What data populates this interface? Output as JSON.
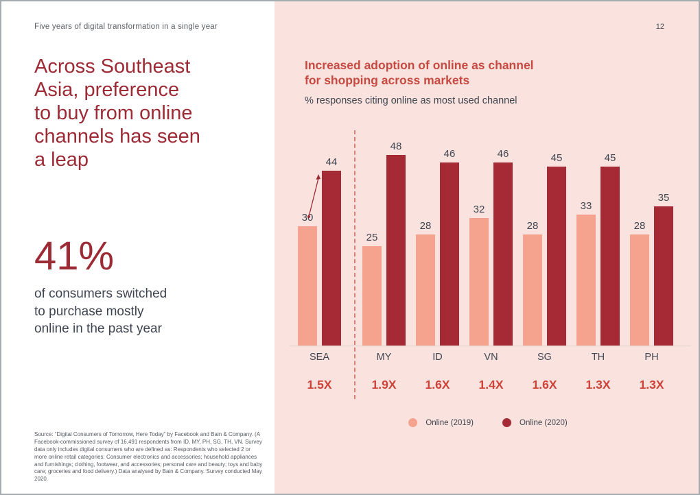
{
  "page": {
    "eyebrow": "Five years of digital transformation in a single year",
    "page_number": "12",
    "headline": "Across Southeast\nAsia, preference\nto buy from online\nchannels has seen\na leap",
    "stat_value": "41%",
    "stat_description": "of consumers switched\nto purchase mostly\nonline in the past year",
    "source": "Source: “Digital Consumers of Tomorrow, Here Today” by Facebook and Bain & Company. (A Facebook-commissioned survey of 16,491 respondents from ID, MY, PH, SG, TH, VN. Survey data only includes digital consumers who are defined as: Respondents who selected 2 or more online retail categories: Consumer electronics and accessories; household appliances and furnishings; clothing, footwear, and accessories; personal care and beauty; toys and baby care; groceries and food delivery.) Data analysed by Bain & Company. Survey conducted May 2020."
  },
  "chart_data": {
    "type": "bar",
    "title": "Increased adoption of online as channel\nfor shopping across markets",
    "subtitle": "% responses citing online as most used channel",
    "categories": [
      "SEA",
      "MY",
      "ID",
      "VN",
      "SG",
      "TH",
      "PH"
    ],
    "series": [
      {
        "name": "Online (2019)",
        "color": "#f5a28e",
        "values": [
          30,
          25,
          28,
          32,
          28,
          33,
          28
        ]
      },
      {
        "name": "Online (2020)",
        "color": "#a52a35",
        "values": [
          44,
          48,
          46,
          46,
          45,
          45,
          35
        ]
      }
    ],
    "multipliers": [
      "1.5X",
      "1.9X",
      "1.6X",
      "1.4X",
      "1.6X",
      "1.3X",
      "1.3X"
    ],
    "ylim": [
      0,
      50
    ],
    "grid": false,
    "separator_after_category": "SEA",
    "annotation": "increase-arrow-sea",
    "legend_position": "bottom"
  },
  "colors": {
    "panel_pink": "#fae3de",
    "headline_red": "#9c2b35",
    "title_red": "#c64a41",
    "multiplier_red": "#ce4339",
    "bar_2019": "#f5a28e",
    "bar_2020": "#a52a35",
    "text_dark": "#3e4450",
    "separator_red": "#d57f76"
  }
}
